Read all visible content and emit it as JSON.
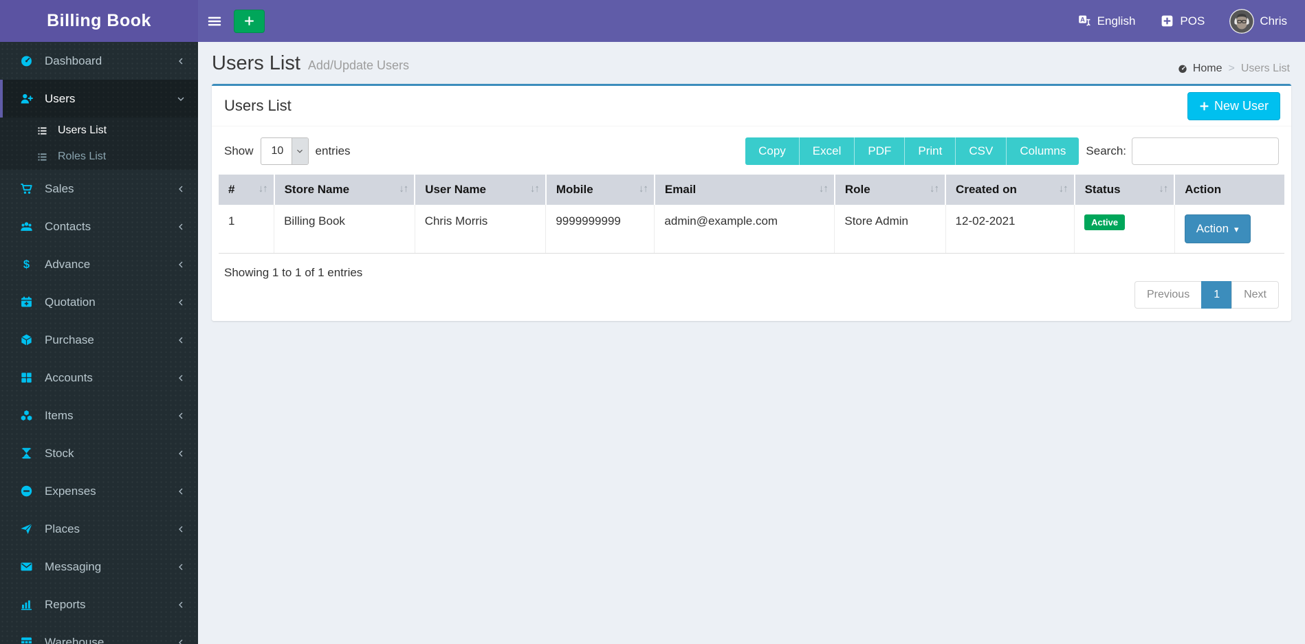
{
  "app": {
    "title": "Billing Book"
  },
  "topbar": {
    "language_label": "English",
    "pos_label": "POS",
    "user_name": "Chris"
  },
  "page": {
    "title": "Users List",
    "subtitle": "Add/Update Users",
    "breadcrumb": {
      "home": "Home",
      "separator": ">",
      "current": "Users List"
    }
  },
  "sidebar": {
    "items": [
      {
        "label": "Dashboard",
        "icon": "dashboard"
      },
      {
        "label": "Users",
        "icon": "user-plus",
        "active": true,
        "expanded": true,
        "children": [
          {
            "label": "Users List",
            "icon": "list",
            "active": true
          },
          {
            "label": "Roles List",
            "icon": "list",
            "active": false
          }
        ]
      },
      {
        "label": "Sales",
        "icon": "cart"
      },
      {
        "label": "Contacts",
        "icon": "users-group"
      },
      {
        "label": "Advance",
        "icon": "dollar"
      },
      {
        "label": "Quotation",
        "icon": "calendar-plus"
      },
      {
        "label": "Purchase",
        "icon": "cube"
      },
      {
        "label": "Accounts",
        "icon": "grid"
      },
      {
        "label": "Items",
        "icon": "cubes"
      },
      {
        "label": "Stock",
        "icon": "hourglass"
      },
      {
        "label": "Expenses",
        "icon": "minus-circle"
      },
      {
        "label": "Places",
        "icon": "paper-plane"
      },
      {
        "label": "Messaging",
        "icon": "envelope"
      },
      {
        "label": "Reports",
        "icon": "bar-chart"
      },
      {
        "label": "Warehouse",
        "icon": "table"
      }
    ]
  },
  "panel": {
    "title": "Users List",
    "new_user_label": "New User",
    "show_label": "Show",
    "page_size": "10",
    "entries_label": "entries",
    "export_buttons": [
      "Copy",
      "Excel",
      "PDF",
      "Print",
      "CSV",
      "Columns"
    ],
    "search_label": "Search:",
    "search_value": "",
    "table": {
      "columns": [
        {
          "label": "#",
          "sortable": true
        },
        {
          "label": "Store Name",
          "sortable": true
        },
        {
          "label": "User Name",
          "sortable": true
        },
        {
          "label": "Mobile",
          "sortable": true
        },
        {
          "label": "Email",
          "sortable": true
        },
        {
          "label": "Role",
          "sortable": true
        },
        {
          "label": "Created on",
          "sortable": true
        },
        {
          "label": "Status",
          "sortable": true
        },
        {
          "label": "Action",
          "sortable": false
        }
      ],
      "rows": [
        {
          "cells": [
            "1",
            "Billing Book",
            "Chris Morris",
            "9999999999",
            "admin@example.com",
            "Store Admin",
            "12-02-2021"
          ],
          "status": "Active",
          "action_label": "Action"
        }
      ]
    },
    "summary": "Showing 1 to 1 of 1 entries",
    "pagination": {
      "prev_label": "Previous",
      "pages": [
        "1"
      ],
      "active_page": "1",
      "next_label": "Next"
    }
  },
  "colors": {
    "purple": "#605ca8",
    "teal": "#39cccc",
    "info": "#00c0ef",
    "success": "#00a65a",
    "primary": "#3c8dbc",
    "sidebar": "#222d32",
    "content": "#ecf0f5",
    "thead": "#d2d6de",
    "icon": "#00c0ef"
  }
}
